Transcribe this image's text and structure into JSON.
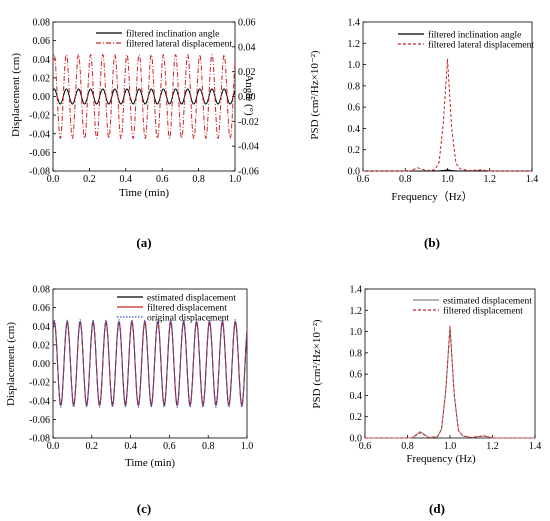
{
  "panels": [
    {
      "caption": "(a)",
      "chart_data": {
        "type": "line",
        "xlabel": "Time (min)",
        "ylabel": "Displacement (cm)",
        "ylabel_right": "Angle (°)",
        "xlim": [
          0.0,
          1.0
        ],
        "ylim": [
          -0.08,
          0.08
        ],
        "ylim_right": [
          -0.06,
          0.06
        ],
        "xticks": [
          "0.0",
          "0.2",
          "0.4",
          "0.6",
          "0.8",
          "1.0"
        ],
        "yticks": [
          "-0.08",
          "-0.06",
          "-0.04",
          "-0.02",
          "0.00",
          "0.02",
          "0.04",
          "0.06",
          "0.08"
        ],
        "yticks_right": [
          "-0.06",
          "-0.04",
          "-0.02",
          "0.00",
          "0.02",
          "0.04",
          "0.06"
        ],
        "legend_position": "top-right",
        "series": [
          {
            "name": "filtered inclination angle",
            "axis": "right",
            "style": "solid",
            "color": "#000000",
            "amplitude": 0.006,
            "cycles": 15
          },
          {
            "name": "filtered lateral displacement",
            "axis": "left",
            "style": "dashdot",
            "color": "#cc2222",
            "amplitude": 0.045,
            "cycles": 15
          }
        ]
      }
    },
    {
      "caption": "(b)",
      "chart_data": {
        "type": "line",
        "xlabel": "Frequency（Hz）",
        "ylabel": "PSD (cm²/Hz×10⁻²)",
        "xlim": [
          0.6,
          1.4
        ],
        "ylim": [
          0.0,
          1.4
        ],
        "xticks": [
          "0.6",
          "0.8",
          "1.0",
          "1.2",
          "1.4"
        ],
        "yticks": [
          "0.0",
          "0.2",
          "0.4",
          "0.6",
          "0.8",
          "1.0",
          "1.2",
          "1.4"
        ],
        "legend_position": "top-right",
        "series": [
          {
            "name": "filtered inclination angle",
            "style": "solid",
            "color": "#000000",
            "x": [
              0.6,
              0.95,
              0.98,
              1.0,
              1.02,
              1.05,
              1.4
            ],
            "y": [
              0.0,
              0.0,
              0.005,
              0.01,
              0.005,
              0.0,
              0.0
            ]
          },
          {
            "name": "filtered lateral displacement",
            "style": "dashed",
            "color": "#cc2222",
            "x": [
              0.6,
              0.82,
              0.86,
              0.9,
              0.94,
              0.96,
              0.98,
              1.0,
              1.02,
              1.04,
              1.06,
              1.1,
              1.16,
              1.2,
              1.4
            ],
            "y": [
              0.0,
              0.0,
              0.03,
              0.005,
              0.01,
              0.08,
              0.45,
              1.05,
              0.4,
              0.07,
              0.02,
              0.005,
              0.01,
              0.0,
              0.0
            ]
          }
        ]
      }
    },
    {
      "caption": "(c)",
      "chart_data": {
        "type": "line",
        "xlabel": "Time (min)",
        "ylabel": "Displacement (cm)",
        "xlim": [
          0.0,
          1.0
        ],
        "ylim": [
          -0.08,
          0.08
        ],
        "xticks": [
          "0.0",
          "0.2",
          "0.4",
          "0.6",
          "0.8",
          "1.0"
        ],
        "yticks": [
          "-0.08",
          "-0.06",
          "-0.04",
          "-0.02",
          "0.00",
          "0.02",
          "0.04",
          "0.06",
          "0.08"
        ],
        "legend_position": "top-right",
        "series": [
          {
            "name": "estimated displacement",
            "style": "solid",
            "color": "#000000",
            "amplitude": 0.044,
            "cycles": 15
          },
          {
            "name": "filtered displacement",
            "style": "solid",
            "color": "#cc2222",
            "amplitude": 0.045,
            "cycles": 15
          },
          {
            "name": "original displacement",
            "style": "dotted",
            "color": "#3355cc",
            "amplitude": 0.047,
            "cycles": 15
          }
        ]
      }
    },
    {
      "caption": "(d)",
      "chart_data": {
        "type": "line",
        "xlabel": "Frequency (Hz)",
        "ylabel": "PSD (cm²/Hz×10⁻²)",
        "xlim": [
          0.6,
          1.4
        ],
        "ylim": [
          0.0,
          1.4
        ],
        "xticks": [
          "0.6",
          "0.8",
          "1.0",
          "1.2",
          "1.4"
        ],
        "yticks": [
          "0.0",
          "0.2",
          "0.4",
          "0.6",
          "0.8",
          "1.0",
          "1.2",
          "1.4"
        ],
        "legend_position": "top-right",
        "series": [
          {
            "name": "estimated displacement",
            "style": "solid",
            "color": "#888888",
            "x": [
              0.6,
              0.82,
              0.86,
              0.9,
              0.94,
              0.96,
              0.98,
              1.0,
              1.02,
              1.04,
              1.06,
              1.1,
              1.16,
              1.2,
              1.4
            ],
            "y": [
              0.0,
              0.0,
              0.06,
              0.005,
              0.01,
              0.08,
              0.45,
              1.04,
              0.4,
              0.07,
              0.02,
              0.005,
              0.02,
              0.0,
              0.0
            ]
          },
          {
            "name": "filtered displacement",
            "style": "dashed",
            "color": "#cc2222",
            "x": [
              0.6,
              0.82,
              0.86,
              0.9,
              0.94,
              0.96,
              0.98,
              1.0,
              1.02,
              1.04,
              1.06,
              1.1,
              1.16,
              1.2,
              1.4
            ],
            "y": [
              0.0,
              0.0,
              0.05,
              0.005,
              0.01,
              0.08,
              0.45,
              1.05,
              0.4,
              0.07,
              0.02,
              0.005,
              0.02,
              0.0,
              0.0
            ]
          }
        ]
      }
    }
  ]
}
